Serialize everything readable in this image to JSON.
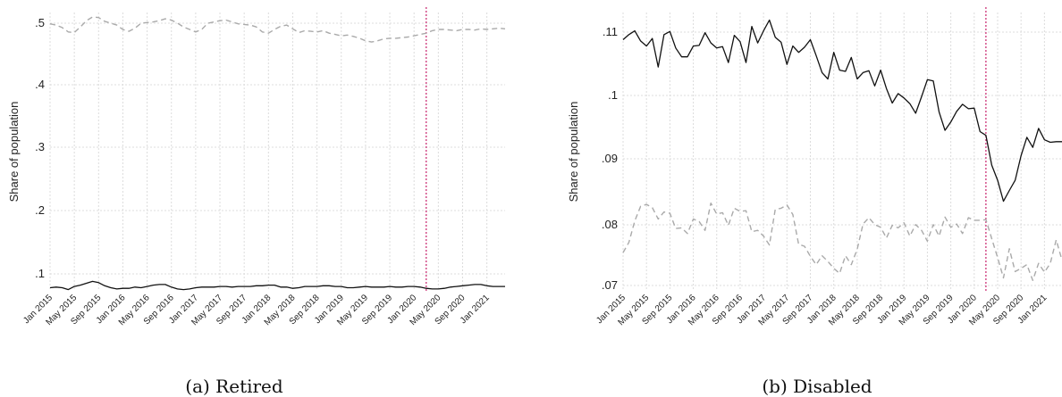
{
  "colors": {
    "solid": "#111111",
    "dashed": "#aaaaaa",
    "vline": "#cc3377",
    "grid": "#dcdcdc"
  },
  "chart_data": [
    {
      "type": "line",
      "caption": "(a) Retired",
      "ylabel": "Share of population",
      "yticks": [
        ".1",
        ".2",
        ".3",
        ".4",
        ".5"
      ],
      "ylim": [
        0.07,
        0.51
      ],
      "x_tick_labels": [
        "Jan 2015",
        "May 2015",
        "Sep 2015",
        "Jan 2016",
        "May 2016",
        "Sep 2016",
        "Jan 2017",
        "May 2017",
        "Sep 2017",
        "Jan 2018",
        "May 2018",
        "Sep 2018",
        "Jan 2019",
        "May 2019",
        "Sep 2019",
        "Jan 2020",
        "May 2020",
        "Sep 2020",
        "Jan 2021"
      ],
      "x_start": "2015-01",
      "x_end": "2021-04",
      "vline_at": "2020-03",
      "grid": true,
      "series": [
        {
          "style": "solid",
          "values": [
            0.078,
            0.079,
            0.078,
            0.075,
            0.08,
            0.082,
            0.085,
            0.088,
            0.086,
            0.081,
            0.078,
            0.076,
            0.077,
            0.077,
            0.079,
            0.078,
            0.08,
            0.082,
            0.083,
            0.083,
            0.079,
            0.076,
            0.075,
            0.076,
            0.078,
            0.079,
            0.079,
            0.079,
            0.08,
            0.08,
            0.079,
            0.08,
            0.08,
            0.08,
            0.081,
            0.081,
            0.082,
            0.082,
            0.079,
            0.079,
            0.077,
            0.078,
            0.08,
            0.08,
            0.08,
            0.081,
            0.081,
            0.08,
            0.08,
            0.078,
            0.078,
            0.079,
            0.08,
            0.079,
            0.079,
            0.079,
            0.08,
            0.079,
            0.079,
            0.08,
            0.08,
            0.079,
            0.077,
            0.076,
            0.076,
            0.077,
            0.079,
            0.08,
            0.081,
            0.082,
            0.083,
            0.083,
            0.081,
            0.08,
            0.08,
            0.08
          ]
        },
        {
          "style": "dashed",
          "values": [
            0.499,
            0.497,
            0.493,
            0.486,
            0.485,
            0.494,
            0.504,
            0.51,
            0.509,
            0.503,
            0.5,
            0.497,
            0.49,
            0.487,
            0.492,
            0.5,
            0.501,
            0.502,
            0.504,
            0.507,
            0.505,
            0.5,
            0.494,
            0.49,
            0.486,
            0.49,
            0.5,
            0.502,
            0.504,
            0.505,
            0.502,
            0.499,
            0.498,
            0.497,
            0.494,
            0.486,
            0.484,
            0.49,
            0.495,
            0.497,
            0.491,
            0.485,
            0.488,
            0.487,
            0.486,
            0.488,
            0.484,
            0.482,
            0.48,
            0.481,
            0.479,
            0.476,
            0.472,
            0.47,
            0.472,
            0.475,
            0.476,
            0.476,
            0.477,
            0.478,
            0.48,
            0.482,
            0.484,
            0.488,
            0.49,
            0.49,
            0.489,
            0.488,
            0.49,
            0.49,
            0.489,
            0.491,
            0.49,
            0.491,
            0.492,
            0.491
          ]
        }
      ]
    },
    {
      "type": "line",
      "caption": "(b) Disabled",
      "ylabel": "Share of population",
      "yticks": [
        ".07",
        ".08",
        ".09",
        ".1",
        ".11"
      ],
      "ylim": [
        0.0692,
        0.1123
      ],
      "x_tick_labels": [
        "Jan 2015",
        "May 2015",
        "Sep 2015",
        "Jan 2016",
        "May 2016",
        "Sep 2016",
        "Jan 2017",
        "May 2017",
        "Sep 2017",
        "Jan 2018",
        "May 2018",
        "Sep 2018",
        "Jan 2019",
        "May 2019",
        "Sep 2019",
        "Jan 2020",
        "May 2020",
        "Sep 2020",
        "Jan 2021"
      ],
      "x_start": "2015-01",
      "x_end": "2021-04",
      "vline_at": "2020-03",
      "grid": true,
      "series": [
        {
          "style": "solid",
          "values": [
            0.1088,
            0.1096,
            0.1102,
            0.1086,
            0.1078,
            0.109,
            0.1045,
            0.1096,
            0.1101,
            0.1075,
            0.1061,
            0.1061,
            0.1078,
            0.1079,
            0.1099,
            0.1083,
            0.1075,
            0.1077,
            0.1052,
            0.1095,
            0.1085,
            0.1052,
            0.1109,
            0.1083,
            0.1102,
            0.1119,
            0.1092,
            0.1084,
            0.1049,
            0.1078,
            0.1068,
            0.1076,
            0.1088,
            0.1063,
            0.1036,
            0.1026,
            0.1068,
            0.104,
            0.1038,
            0.106,
            0.1026,
            0.1036,
            0.1039,
            0.1015,
            0.104,
            0.1011,
            0.0988,
            0.1003,
            0.0996,
            0.0987,
            0.0972,
            0.0998,
            0.1025,
            0.1023,
            0.0974,
            0.0945,
            0.0958,
            0.0975,
            0.0986,
            0.0979,
            0.098,
            0.0943,
            0.0937,
            0.089,
            0.0866,
            0.0833,
            0.085,
            0.0866,
            0.0905,
            0.0934,
            0.0918,
            0.0948,
            0.093,
            0.0926,
            0.0927,
            0.0927
          ]
        },
        {
          "style": "dashed",
          "values": [
            0.0752,
            0.0768,
            0.0802,
            0.0825,
            0.0828,
            0.0823,
            0.0805,
            0.0816,
            0.0814,
            0.079,
            0.0791,
            0.0782,
            0.0805,
            0.0801,
            0.0787,
            0.083,
            0.0813,
            0.0815,
            0.0795,
            0.0822,
            0.0817,
            0.0818,
            0.0785,
            0.0787,
            0.0778,
            0.0764,
            0.082,
            0.0822,
            0.0827,
            0.0812,
            0.0765,
            0.0762,
            0.0746,
            0.0733,
            0.0747,
            0.0738,
            0.0727,
            0.0719,
            0.0747,
            0.0733,
            0.0757,
            0.0797,
            0.0807,
            0.0796,
            0.0792,
            0.0775,
            0.0795,
            0.0791,
            0.0799,
            0.0778,
            0.0796,
            0.0787,
            0.077,
            0.0796,
            0.0778,
            0.0808,
            0.0792,
            0.0797,
            0.0782,
            0.0807,
            0.0803,
            0.0803,
            0.0804,
            0.0774,
            0.0744,
            0.0712,
            0.0758,
            0.0722,
            0.0727,
            0.0733,
            0.0708,
            0.0735,
            0.0721,
            0.0735,
            0.0772,
            0.074
          ]
        }
      ]
    }
  ]
}
